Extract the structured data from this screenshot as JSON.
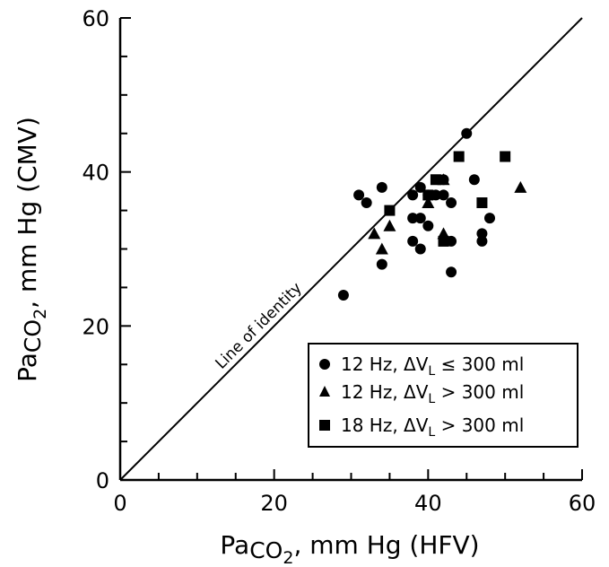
{
  "chart_data": {
    "type": "scatter",
    "title": "",
    "xlabel": {
      "prefix": "Pa",
      "chem": "CO",
      "sub": "2",
      "suffix": ", mm Hg (HFV)"
    },
    "ylabel": {
      "prefix": "Pa",
      "chem": "CO",
      "sub": "2",
      "suffix": ", mm Hg (CMV)"
    },
    "xlim": [
      0,
      60
    ],
    "ylim": [
      0,
      60
    ],
    "xticks": [
      "0",
      "20",
      "40",
      "60"
    ],
    "yticks": [
      "0",
      "20",
      "40",
      "60"
    ],
    "grid": false,
    "reference_line": {
      "label": "Line of identity",
      "x": [
        0,
        60
      ],
      "y": [
        0,
        60
      ]
    },
    "legend_position": "lower-right",
    "series": [
      {
        "name": "12 Hz, ΔVʟ ≤ 300 ml",
        "legend": {
          "rate": "12 Hz, ΔV",
          "sub": "L",
          "rest": " ≤ 300 ml"
        },
        "marker": "circle",
        "points": [
          [
            29,
            24
          ],
          [
            31,
            37
          ],
          [
            32,
            36
          ],
          [
            34,
            38
          ],
          [
            34,
            28
          ],
          [
            38,
            37
          ],
          [
            38,
            34
          ],
          [
            38,
            31
          ],
          [
            39,
            38
          ],
          [
            39,
            34
          ],
          [
            39,
            30
          ],
          [
            40,
            37
          ],
          [
            40,
            33
          ],
          [
            41,
            37
          ],
          [
            42,
            39
          ],
          [
            42,
            37
          ],
          [
            43,
            36
          ],
          [
            43,
            31
          ],
          [
            43,
            27
          ],
          [
            45,
            45
          ],
          [
            46,
            39
          ],
          [
            47,
            32
          ],
          [
            47,
            31
          ],
          [
            48,
            34
          ]
        ]
      },
      {
        "name": "12 Hz, ΔVʟ > 300 ml",
        "legend": {
          "rate": "12 Hz, ΔV",
          "sub": "L",
          "rest": " > 300 ml"
        },
        "marker": "triangle",
        "points": [
          [
            33,
            32
          ],
          [
            34,
            30
          ],
          [
            35,
            33
          ],
          [
            40,
            36
          ],
          [
            42,
            39
          ],
          [
            42,
            32
          ],
          [
            52,
            38
          ]
        ]
      },
      {
        "name": "18 Hz, ΔVʟ > 300 ml",
        "legend": {
          "rate": "18 Hz, ΔV",
          "sub": "L",
          "rest": " > 300 ml"
        },
        "marker": "square",
        "points": [
          [
            35,
            35
          ],
          [
            40,
            37
          ],
          [
            41,
            39
          ],
          [
            42,
            31
          ],
          [
            44,
            42
          ],
          [
            47,
            36
          ],
          [
            50,
            42
          ]
        ]
      }
    ]
  }
}
